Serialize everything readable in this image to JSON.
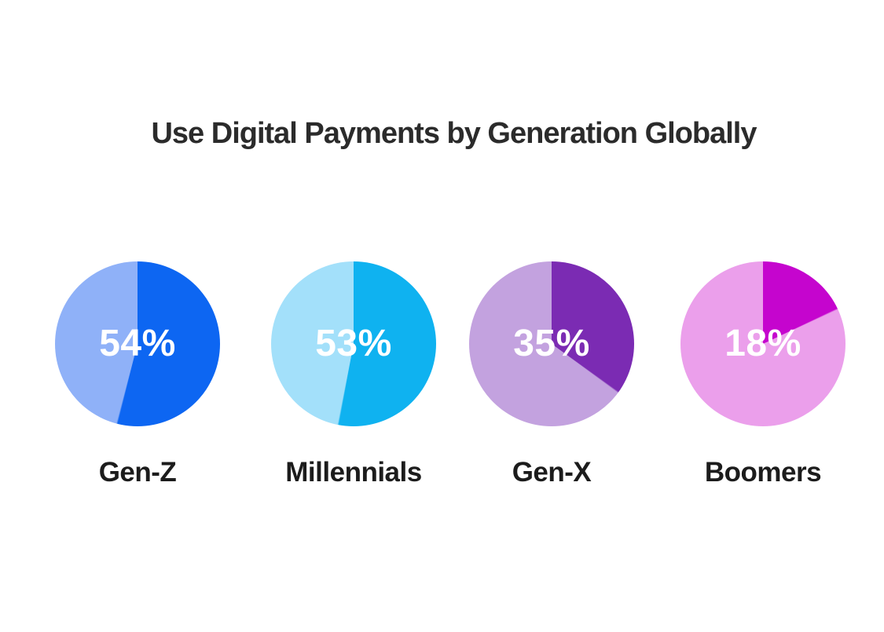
{
  "title": "Use Digital Payments by Generation Globally",
  "chart_data": {
    "type": "pie",
    "title": "Use Digital Payments by Generation Globally",
    "unit": "%",
    "categories": [
      "Gen-Z",
      "Millennials",
      "Gen-X",
      "Boomers"
    ],
    "values": [
      54,
      53,
      35,
      18
    ],
    "legend": "none",
    "layout": "four pie charts in a horizontal row, slices start at 12 o'clock and sweep clockwise",
    "title_color": "#2b2b2b",
    "category_label_color": "#1c1c1c",
    "value_label_color": "#ffffff",
    "pies": [
      {
        "label": "Gen-Z",
        "value": 54,
        "value_label": "54%",
        "color_primary": "#0d66f2",
        "color_secondary": "#8fb1f8"
      },
      {
        "label": "Millennials",
        "value": 53,
        "value_label": "53%",
        "color_primary": "#0fb2f0",
        "color_secondary": "#a3e0fa"
      },
      {
        "label": "Gen-X",
        "value": 35,
        "value_label": "35%",
        "color_primary": "#7b2bb3",
        "color_secondary": "#c3a2df"
      },
      {
        "label": "Boomers",
        "value": 18,
        "value_label": "18%",
        "color_primary": "#c505ce",
        "color_secondary": "#eb9feb"
      }
    ]
  }
}
